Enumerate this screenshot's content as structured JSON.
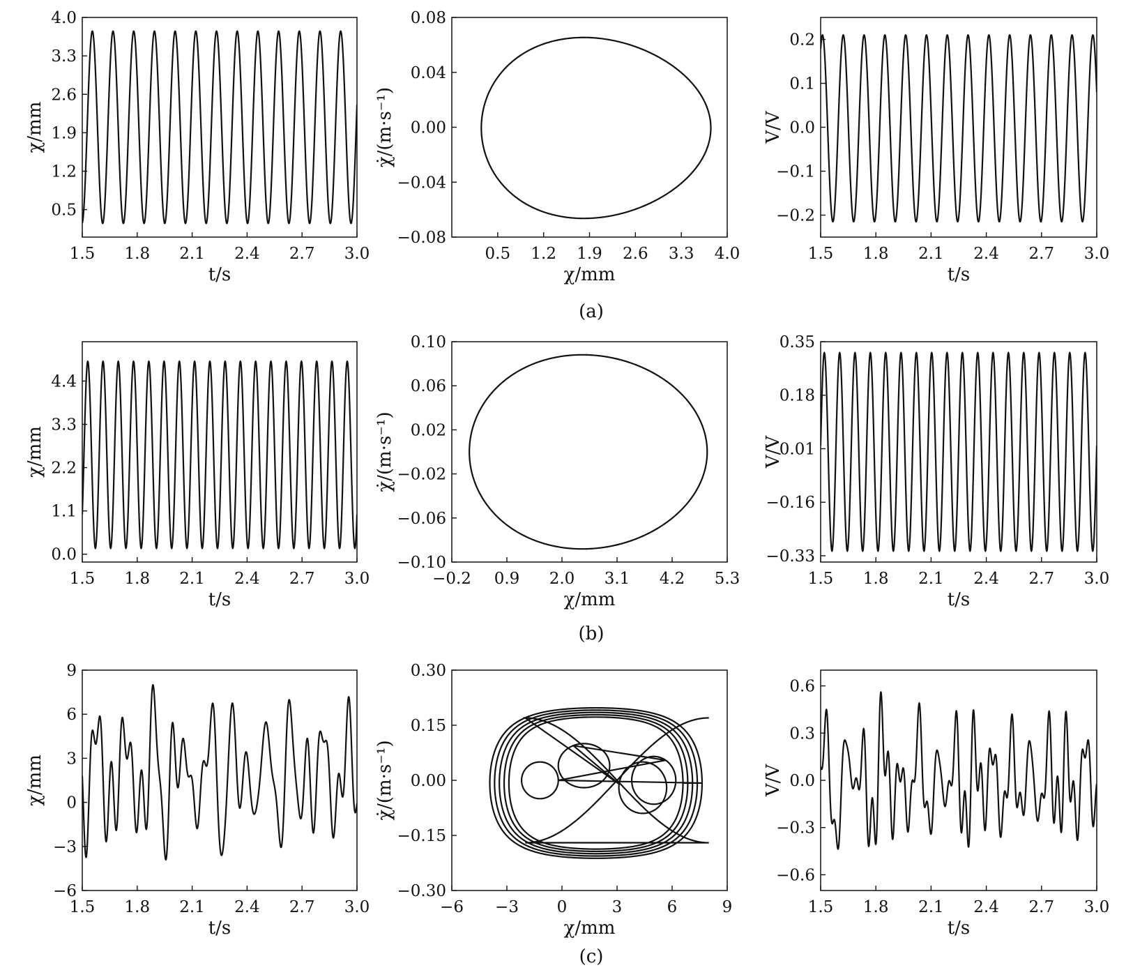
{
  "figure": {
    "captions": [
      "(a)",
      "(b)",
      "(c)"
    ]
  },
  "chart_data": [
    {
      "row": "a",
      "col": 1,
      "type": "line",
      "signal": "displacement",
      "xlabel": "t/s",
      "ylabel": "χ/mm",
      "xlim": [
        1.5,
        3.0
      ],
      "ylim": [
        0.0,
        4.0
      ],
      "xticks": [
        "1.5",
        "1.8",
        "2.1",
        "2.4",
        "2.7",
        "3.0"
      ],
      "xtick_values": [
        1.5,
        1.8,
        2.1,
        2.4,
        2.7,
        3.0
      ],
      "yticks": [
        "0.5",
        "1.2",
        "1.9",
        "2.6",
        "3.3",
        "4.0"
      ],
      "ytick_values": [
        0.5,
        1.2,
        1.9,
        2.6,
        3.3,
        4.0
      ],
      "series": [
        {
          "waveform": "periodic",
          "frequency_hz": 8.85,
          "phase_t0": 1.555,
          "peak": 3.75,
          "trough": 0.25
        }
      ]
    },
    {
      "row": "a",
      "col": 2,
      "type": "line",
      "signal": "phase",
      "xlabel": "χ/mm",
      "ylabel": "χ̇/(m·s⁻¹)",
      "xlim": [
        -0.2,
        4.0
      ],
      "ylim": [
        -0.08,
        0.08
      ],
      "xticks": [
        "0.5",
        "1.2",
        "1.9",
        "2.6",
        "3.3",
        "4.0"
      ],
      "xtick_values": [
        0.5,
        1.2,
        1.9,
        2.6,
        3.3,
        4.0
      ],
      "yticks": [
        "−0.08",
        "−0.04",
        "0.00",
        "0.04",
        "0.08"
      ],
      "ytick_values": [
        -0.08,
        -0.04,
        0.0,
        0.04,
        0.08
      ],
      "series": [
        {
          "waveform": "orbit",
          "x_min": 0.25,
          "x_max": 3.75,
          "v_max": 0.065,
          "v_min": -0.066,
          "skew": 0.22
        }
      ]
    },
    {
      "row": "a",
      "col": 3,
      "type": "line",
      "signal": "voltage",
      "xlabel": "t/s",
      "ylabel": "V/V",
      "xlim": [
        1.5,
        3.0
      ],
      "ylim": [
        -0.25,
        0.25
      ],
      "xticks": [
        "1.5",
        "1.8",
        "2.1",
        "2.4",
        "2.7",
        "3.0"
      ],
      "xtick_values": [
        1.5,
        1.8,
        2.1,
        2.4,
        2.7,
        3.0
      ],
      "yticks": [
        "−0.2",
        "−0.1",
        "0.0",
        "0.1",
        "0.2"
      ],
      "ytick_values": [
        -0.2,
        -0.1,
        0.0,
        0.1,
        0.2
      ],
      "series": [
        {
          "waveform": "periodic",
          "frequency_hz": 8.85,
          "phase_t0": 1.51,
          "peak": 0.21,
          "trough": -0.215
        }
      ]
    },
    {
      "row": "b",
      "col": 1,
      "type": "line",
      "signal": "displacement",
      "xlabel": "t/s",
      "ylabel": "χ/mm",
      "xlim": [
        1.5,
        3.0
      ],
      "ylim": [
        -0.2,
        5.4
      ],
      "xticks": [
        "1.5",
        "1.8",
        "2.1",
        "2.4",
        "2.7",
        "3.0"
      ],
      "xtick_values": [
        1.5,
        1.8,
        2.1,
        2.4,
        2.7,
        3.0
      ],
      "yticks": [
        "0.0",
        "1.1",
        "2.2",
        "3.3",
        "4.4"
      ],
      "ytick_values": [
        0.0,
        1.1,
        2.2,
        3.3,
        4.4
      ],
      "series": [
        {
          "waveform": "periodic",
          "frequency_hz": 12.0,
          "phase_t0": 1.53,
          "peak": 4.9,
          "trough": 0.15
        }
      ]
    },
    {
      "row": "b",
      "col": 2,
      "type": "line",
      "signal": "phase",
      "xlabel": "χ/mm",
      "ylabel": "χ̇/(m·s⁻¹)",
      "xlim": [
        -0.2,
        5.3
      ],
      "ylim": [
        -0.1,
        0.1
      ],
      "xticks": [
        "−0.2",
        "0.9",
        "2.0",
        "3.1",
        "4.2",
        "5.3"
      ],
      "xtick_values": [
        -0.2,
        0.9,
        2.0,
        3.1,
        4.2,
        5.3
      ],
      "yticks": [
        "−0.10",
        "−0.06",
        "−0.02",
        "0.02",
        "0.06",
        "0.10"
      ],
      "ytick_values": [
        -0.1,
        -0.06,
        -0.02,
        0.02,
        0.06,
        0.1
      ],
      "series": [
        {
          "waveform": "orbit",
          "x_min": 0.15,
          "x_max": 4.9,
          "v_max": 0.088,
          "v_min": -0.088,
          "skew": 0.1
        }
      ]
    },
    {
      "row": "b",
      "col": 3,
      "type": "line",
      "signal": "voltage",
      "xlabel": "t/s",
      "ylabel": "V/V",
      "xlim": [
        1.5,
        3.0
      ],
      "ylim": [
        -0.35,
        0.35
      ],
      "xticks": [
        "1.5",
        "1.8",
        "2.1",
        "2.4",
        "2.7",
        "3.0"
      ],
      "xtick_values": [
        1.5,
        1.8,
        2.1,
        2.4,
        2.7,
        3.0
      ],
      "yticks": [
        "−0.33",
        "−0.16",
        "0.01",
        "0.18",
        "0.35"
      ],
      "ytick_values": [
        -0.33,
        -0.16,
        0.01,
        0.18,
        0.35
      ],
      "series": [
        {
          "waveform": "periodic",
          "frequency_hz": 12.0,
          "phase_t0": 1.52,
          "peak": 0.315,
          "trough": -0.315
        }
      ]
    },
    {
      "row": "c",
      "col": 1,
      "type": "line",
      "signal": "displacement",
      "xlabel": "t/s",
      "ylabel": "χ/mm",
      "xlim": [
        1.5,
        3.0
      ],
      "ylim": [
        -6,
        9
      ],
      "xticks": [
        "1.5",
        "1.8",
        "2.1",
        "2.4",
        "2.7",
        "3.0"
      ],
      "xtick_values": [
        1.5,
        1.8,
        2.1,
        2.4,
        2.7,
        3.0
      ],
      "yticks": [
        "−6",
        "−3",
        "0",
        "3",
        "6",
        "9"
      ],
      "ytick_values": [
        -6,
        -3,
        0,
        3,
        6,
        9
      ],
      "series": [
        {
          "waveform": "chaotic",
          "seed": 11,
          "peak": 8.0,
          "trough": -4.3
        }
      ]
    },
    {
      "row": "c",
      "col": 2,
      "type": "line",
      "signal": "phase",
      "xlabel": "χ/mm",
      "ylabel": "χ̇/(m·s⁻¹)",
      "xlim": [
        -6,
        9
      ],
      "ylim": [
        -0.3,
        0.3
      ],
      "xticks": [
        "−6",
        "−3",
        "0",
        "3",
        "6",
        "9"
      ],
      "xtick_values": [
        -6,
        -3,
        0,
        3,
        6,
        9
      ],
      "yticks": [
        "−0.30",
        "−0.15",
        "0.00",
        "0.15",
        "0.30"
      ],
      "ytick_values": [
        -0.3,
        -0.15,
        0.0,
        0.15,
        0.3
      ],
      "series": [
        {
          "waveform": "attractor",
          "x_min": -4.3,
          "x_max": 8.0,
          "v_max": 0.23,
          "v_min": -0.245
        }
      ]
    },
    {
      "row": "c",
      "col": 3,
      "type": "line",
      "signal": "voltage",
      "xlabel": "t/s",
      "ylabel": "V/V",
      "xlim": [
        1.5,
        3.0
      ],
      "ylim": [
        -0.7,
        0.7
      ],
      "xticks": [
        "1.5",
        "1.8",
        "2.1",
        "2.4",
        "2.7",
        "3.0"
      ],
      "xtick_values": [
        1.5,
        1.8,
        2.1,
        2.4,
        2.7,
        3.0
      ],
      "yticks": [
        "−0.6",
        "−0.3",
        "0.0",
        "0.3",
        "0.6"
      ],
      "ytick_values": [
        -0.6,
        -0.3,
        0.0,
        0.3,
        0.6
      ],
      "series": [
        {
          "waveform": "chaotic",
          "seed": 29,
          "peak": 0.56,
          "trough": -0.58
        }
      ]
    }
  ]
}
